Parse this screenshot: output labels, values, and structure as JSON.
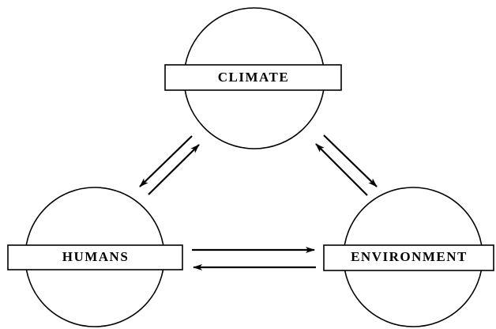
{
  "nodes": [
    {
      "label": "CLIMATE"
    },
    {
      "label": "HUMANS"
    },
    {
      "label": "ENVIRONMENT"
    }
  ]
}
